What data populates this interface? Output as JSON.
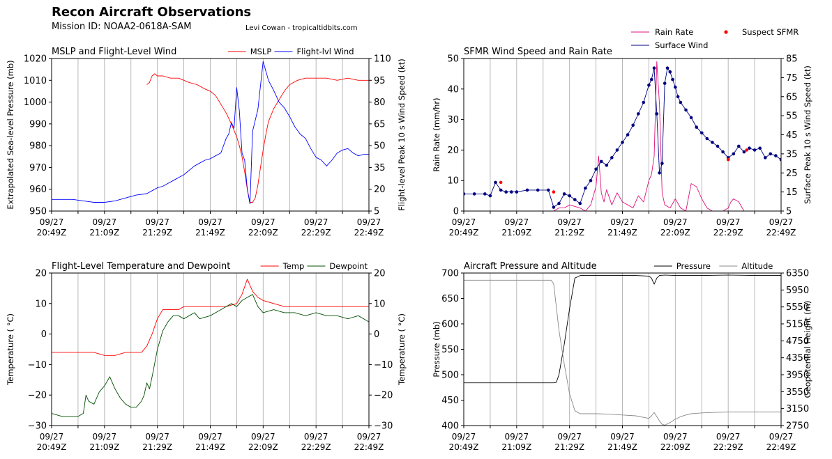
{
  "header": {
    "title": "Recon Aircraft Observations",
    "mission": "Mission ID: NOAA2-0618A-SAM",
    "credit": "Levi Cowan - tropicaltidbits.com"
  },
  "chart_data": [
    {
      "type": "line",
      "title": "MSLP and Flight-Level Wind",
      "ylabel": "Extrapolated Sea-level Pressure (mb)",
      "y2label": "Flight-level Peak 10 s Wind Speed (kt)",
      "ylim": [
        950,
        1020
      ],
      "y2lim": [
        5,
        110
      ],
      "yticks": [
        950,
        960,
        970,
        980,
        990,
        1000,
        1010,
        1020
      ],
      "y2ticks": [
        5,
        20,
        35,
        50,
        65,
        80,
        95,
        110
      ],
      "xlim": [
        0,
        120
      ],
      "xtick_positions": [
        0,
        20,
        40,
        60,
        80,
        100,
        120
      ],
      "xtick_labels": [
        [
          "09/27",
          "20:49Z"
        ],
        [
          "09/27",
          "21:09Z"
        ],
        [
          "09/27",
          "21:29Z"
        ],
        [
          "09/27",
          "21:49Z"
        ],
        [
          "09/27",
          "22:09Z"
        ],
        [
          "09/27",
          "22:29Z"
        ],
        [
          "09/27",
          "22:49Z"
        ]
      ],
      "grid": "vertical",
      "legend": "top-right",
      "series": [
        {
          "name": "MSLP",
          "axis": "left",
          "color": "#ff0000",
          "style": "line",
          "x": [
            36,
            37,
            38,
            39,
            40,
            42,
            45,
            48,
            50,
            52,
            55,
            58,
            60,
            62,
            64,
            66,
            68,
            70,
            71,
            72,
            73,
            74,
            75,
            76,
            77,
            78,
            79,
            80,
            81,
            82,
            84,
            86,
            88,
            90,
            93,
            96,
            100,
            104,
            108,
            112,
            116,
            118,
            120
          ],
          "y": [
            1008,
            1009,
            1012,
            1013,
            1012,
            1012,
            1011,
            1011,
            1010,
            1009,
            1008,
            1006,
            1005,
            1003,
            999,
            995,
            990,
            984,
            980,
            975,
            968,
            960,
            954,
            954,
            956,
            962,
            970,
            978,
            985,
            991,
            997,
            1001,
            1005,
            1008,
            1010,
            1011,
            1011,
            1011,
            1010,
            1011,
            1010,
            1010,
            1010
          ]
        },
        {
          "name": "Flight-lvl Wind",
          "axis": "right",
          "color": "#0000ff",
          "style": "line",
          "x": [
            0,
            4,
            8,
            12,
            16,
            20,
            24,
            28,
            32,
            36,
            38,
            40,
            42,
            44,
            46,
            48,
            50,
            52,
            54,
            56,
            58,
            60,
            62,
            64,
            65,
            66,
            67,
            68,
            69,
            70,
            71,
            72,
            73,
            74,
            75,
            76,
            78,
            80,
            82,
            84,
            86,
            88,
            90,
            92,
            94,
            96,
            98,
            100,
            102,
            104,
            106,
            108,
            110,
            112,
            114,
            116,
            118,
            120
          ],
          "y": [
            13,
            13,
            13,
            12,
            11,
            11,
            12,
            14,
            16,
            17,
            19,
            21,
            22,
            24,
            26,
            28,
            30,
            33,
            36,
            38,
            40,
            41,
            43,
            45,
            50,
            55,
            58,
            66,
            62,
            90,
            74,
            45,
            40,
            20,
            10,
            60,
            75,
            108,
            95,
            88,
            80,
            76,
            70,
            63,
            58,
            55,
            48,
            42,
            40,
            36,
            40,
            45,
            47,
            48,
            45,
            43,
            44,
            44
          ]
        }
      ]
    },
    {
      "type": "line",
      "title": "SFMR Wind Speed and Rain Rate",
      "ylabel": "Rain Rate (mm/hr)",
      "y2label": "Surface Peak 10 s Wind Speed (kt)",
      "ylim": [
        0,
        50
      ],
      "y2lim": [
        5,
        85
      ],
      "yticks": [
        0,
        10,
        20,
        30,
        40,
        50
      ],
      "y2ticks": [
        5,
        15,
        25,
        35,
        45,
        55,
        65,
        75,
        85
      ],
      "xlim": [
        0,
        120
      ],
      "xtick_positions": [
        0,
        20,
        40,
        60,
        80,
        100,
        120
      ],
      "xtick_labels": [
        [
          "09/27",
          "20:49Z"
        ],
        [
          "09/27",
          "21:09Z"
        ],
        [
          "09/27",
          "21:29Z"
        ],
        [
          "09/27",
          "21:49Z"
        ],
        [
          "09/27",
          "22:09Z"
        ],
        [
          "09/27",
          "22:29Z"
        ],
        [
          "09/27",
          "22:49Z"
        ]
      ],
      "grid": "vertical",
      "legend": "above-right",
      "series": [
        {
          "name": "Rain Rate",
          "axis": "left",
          "color": "#e0107a",
          "style": "line",
          "x": [
            0,
            20,
            34,
            36,
            38,
            40,
            44,
            46,
            48,
            50,
            51,
            52,
            53,
            54,
            56,
            58,
            60,
            62,
            64,
            66,
            68,
            70,
            71,
            72,
            73,
            74,
            75,
            76,
            78,
            80,
            82,
            84,
            86,
            88,
            90,
            92,
            94,
            96,
            98,
            100,
            101,
            102,
            104,
            106,
            108,
            110,
            112,
            114,
            116,
            118,
            120
          ],
          "y": [
            0,
            0,
            0,
            1,
            1,
            2,
            1,
            0,
            2,
            8,
            18,
            6,
            3,
            7,
            2,
            6,
            3,
            2,
            1,
            5,
            3,
            10,
            12,
            18,
            49,
            35,
            6,
            2,
            1,
            4,
            1,
            0,
            9,
            8,
            4,
            1,
            0,
            0,
            0,
            1,
            3,
            4,
            3,
            0,
            0,
            0,
            0,
            0,
            0,
            0,
            0
          ]
        },
        {
          "name": "Surface Wind",
          "axis": "right",
          "color": "#000080",
          "style": "line+markers",
          "x": [
            0,
            4,
            8,
            10,
            12,
            14,
            16,
            18,
            20,
            24,
            28,
            32,
            34,
            36,
            38,
            40,
            42,
            44,
            46,
            48,
            50,
            52,
            54,
            56,
            58,
            60,
            62,
            64,
            66,
            68,
            70,
            71,
            72,
            73,
            74,
            75,
            76,
            77,
            78,
            79,
            80,
            81,
            82,
            84,
            86,
            88,
            90,
            92,
            94,
            96,
            98,
            100,
            102,
            104,
            106,
            108,
            110,
            112,
            114,
            116,
            118,
            120
          ],
          "y": [
            14,
            14,
            14,
            13,
            20,
            16,
            15,
            15,
            15,
            16,
            16,
            16,
            7,
            9,
            14,
            13,
            11,
            9,
            17,
            21,
            27,
            31,
            29,
            33,
            37,
            41,
            45,
            50,
            56,
            62,
            71,
            74,
            80,
            56,
            25,
            30,
            72,
            80,
            78,
            74,
            70,
            65,
            62,
            58,
            54,
            49,
            46,
            43,
            41,
            39,
            36,
            33,
            35,
            39,
            36,
            38,
            37,
            38,
            33,
            35,
            34,
            32
          ]
        },
        {
          "name": "Suspect SFMR",
          "axis": "right",
          "color": "#ff0000",
          "style": "markers",
          "x": [
            14,
            34,
            100,
            107
          ],
          "y": [
            20,
            15,
            32,
            37
          ]
        }
      ]
    },
    {
      "type": "line",
      "title": "Flight-Level Temperature and Dewpoint",
      "ylabel": "Temperature ( °C)",
      "y2label": "Temperature ( °C)",
      "ylim": [
        -30,
        20
      ],
      "y2lim": [
        -30,
        20
      ],
      "yticks": [
        -30,
        -20,
        -10,
        0,
        10,
        20
      ],
      "y2ticks": [
        -30,
        -20,
        -10,
        0,
        10,
        20
      ],
      "xlim": [
        0,
        120
      ],
      "xtick_positions": [
        0,
        20,
        40,
        60,
        80,
        100,
        120
      ],
      "xtick_labels": [
        [
          "09/27",
          "20:49Z"
        ],
        [
          "09/27",
          "21:09Z"
        ],
        [
          "09/27",
          "21:29Z"
        ],
        [
          "09/27",
          "21:49Z"
        ],
        [
          "09/27",
          "22:09Z"
        ],
        [
          "09/27",
          "22:29Z"
        ],
        [
          "09/27",
          "22:49Z"
        ]
      ],
      "grid": "vertical",
      "legend": "top-right",
      "series": [
        {
          "name": "Temp",
          "axis": "left",
          "color": "#ff0000",
          "style": "line",
          "x": [
            0,
            4,
            8,
            12,
            16,
            20,
            24,
            28,
            32,
            34,
            36,
            38,
            40,
            42,
            44,
            46,
            48,
            50,
            54,
            58,
            62,
            66,
            70,
            72,
            74,
            76,
            78,
            80,
            84,
            88,
            92,
            96,
            100,
            104,
            108,
            112,
            116,
            120
          ],
          "y": [
            -6,
            -6,
            -6,
            -6,
            -6,
            -7,
            -7,
            -6,
            -6,
            -6,
            -4,
            0,
            5,
            8,
            8,
            8,
            8,
            9,
            9,
            9,
            9,
            9,
            10,
            13,
            18,
            14,
            12,
            11,
            10,
            9,
            9,
            9,
            9,
            9,
            9,
            9,
            9,
            9
          ]
        },
        {
          "name": "Dewpoint",
          "axis": "left",
          "color": "#005000",
          "style": "line",
          "x": [
            0,
            4,
            8,
            10,
            12,
            13,
            14,
            16,
            18,
            20,
            22,
            24,
            26,
            28,
            30,
            32,
            34,
            35,
            36,
            37,
            38,
            40,
            42,
            44,
            46,
            48,
            50,
            52,
            54,
            56,
            60,
            64,
            68,
            70,
            72,
            74,
            76,
            78,
            80,
            84,
            88,
            92,
            96,
            100,
            104,
            108,
            112,
            116,
            120
          ],
          "y": [
            -26,
            -27,
            -27,
            -27,
            -26,
            -20,
            -22,
            -23,
            -19,
            -17,
            -14,
            -18,
            -21,
            -23,
            -24,
            -24,
            -22,
            -20,
            -16,
            -18,
            -14,
            -5,
            1,
            4,
            6,
            6,
            5,
            6,
            7,
            5,
            6,
            8,
            10,
            9,
            11,
            12,
            13,
            9,
            7,
            8,
            7,
            7,
            6,
            7,
            6,
            6,
            5,
            6,
            4
          ]
        }
      ]
    },
    {
      "type": "line",
      "title": "Aircraft Pressure and Altitude",
      "ylabel": "Pressure (mb)",
      "y2label": "Geopotential Height (m)",
      "ylim": [
        400,
        700
      ],
      "y2lim": [
        2750,
        6350
      ],
      "yticks": [
        400,
        450,
        500,
        550,
        600,
        650,
        700
      ],
      "y2ticks": [
        2750,
        3150,
        3550,
        3950,
        4350,
        4750,
        5150,
        5550,
        5950,
        6350
      ],
      "xlim": [
        0,
        120
      ],
      "xtick_positions": [
        0,
        20,
        40,
        60,
        80,
        100,
        120
      ],
      "xtick_labels": [
        [
          "09/27",
          "20:49Z"
        ],
        [
          "09/27",
          "21:09Z"
        ],
        [
          "09/27",
          "21:29Z"
        ],
        [
          "09/27",
          "21:49Z"
        ],
        [
          "09/27",
          "22:09Z"
        ],
        [
          "09/27",
          "22:29Z"
        ],
        [
          "09/27",
          "22:49Z"
        ]
      ],
      "grid": "vertical",
      "legend": "top-right",
      "series": [
        {
          "name": "Pressure",
          "axis": "left",
          "color": "#000000",
          "style": "line",
          "x": [
            0,
            10,
            20,
            30,
            34,
            35,
            36,
            38,
            40,
            42,
            44,
            46,
            50,
            55,
            60,
            65,
            70,
            71,
            72,
            73,
            74,
            76,
            80,
            90,
            100,
            110,
            120
          ],
          "y": [
            484,
            484,
            484,
            484,
            484,
            485,
            500,
            560,
            630,
            690,
            695,
            695,
            695,
            695,
            695,
            695,
            694,
            690,
            678,
            690,
            695,
            696,
            695,
            695,
            696,
            695,
            695
          ]
        },
        {
          "name": "Altitude",
          "axis": "right",
          "color": "#888888",
          "style": "line",
          "x": [
            0,
            10,
            20,
            30,
            33,
            34,
            36,
            38,
            40,
            42,
            44,
            46,
            50,
            55,
            60,
            65,
            70,
            71,
            72,
            73,
            74,
            75,
            76,
            78,
            80,
            82,
            84,
            86,
            88,
            90,
            95,
            100,
            105,
            110,
            115,
            120
          ],
          "y": [
            6180,
            6180,
            6180,
            6180,
            6180,
            6100,
            5000,
            4200,
            3500,
            3100,
            3030,
            3030,
            3030,
            3020,
            3000,
            2980,
            2920,
            2980,
            3060,
            2960,
            2860,
            2780,
            2760,
            2820,
            2900,
            2960,
            3000,
            3030,
            3040,
            3050,
            3060,
            3070,
            3070,
            3070,
            3070,
            3070
          ]
        }
      ]
    }
  ]
}
